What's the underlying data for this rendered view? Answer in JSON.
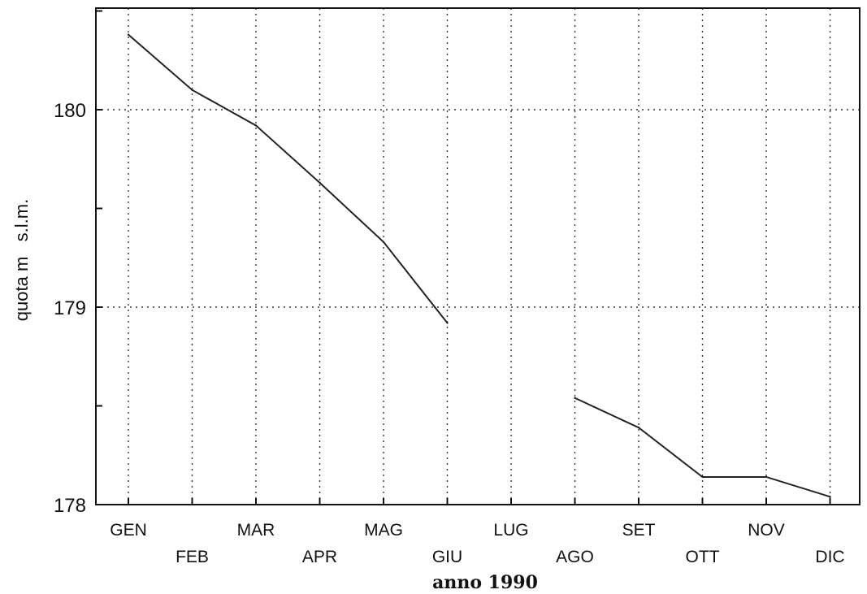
{
  "chart_data": {
    "type": "line",
    "title": "",
    "xlabel": "anno 1990",
    "ylabel": "quota m   s.l.m.",
    "categories": [
      "GEN",
      "FEB",
      "MAR",
      "APR",
      "MAG",
      "GIU",
      "LUG",
      "AGO",
      "SET",
      "OTT",
      "NOV",
      "DIC"
    ],
    "ylim": [
      178,
      180.5
    ],
    "yticks": [
      "178",
      "179",
      "180"
    ],
    "grid": true,
    "series": [
      {
        "values": [
          180.38,
          180.1,
          179.92,
          179.63,
          179.33,
          178.92,
          null,
          178.54,
          178.39,
          178.14,
          178.14,
          178.04
        ]
      }
    ]
  }
}
